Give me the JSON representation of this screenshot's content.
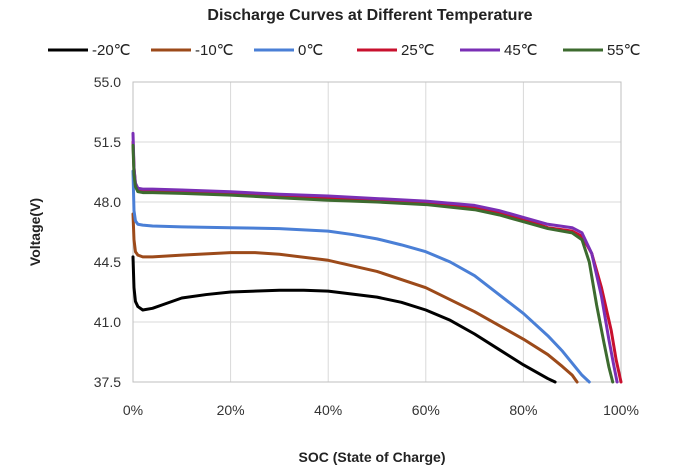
{
  "chart_data": {
    "type": "line",
    "title": "Discharge Curves at Different Temperature",
    "xlabel": "SOC (State of Charge)",
    "ylabel": "Voltage(V)",
    "xlim": [
      0,
      100
    ],
    "ylim": [
      37.5,
      55.0
    ],
    "x_ticks": [
      0,
      20,
      40,
      60,
      80,
      100
    ],
    "x_tick_labels": [
      "0%",
      "20%",
      "40%",
      "60%",
      "80%",
      "100%"
    ],
    "y_ticks": [
      37.5,
      41.0,
      44.5,
      48.0,
      51.5,
      55.0
    ],
    "y_tick_labels": [
      "37.5",
      "41.0",
      "44.5",
      "48.0",
      "51.5",
      "55.0"
    ],
    "grid": true,
    "legend_position": "top",
    "series": [
      {
        "name": "-20℃",
        "color": "#000000",
        "x": [
          0,
          0.2,
          0.5,
          1,
          2,
          4,
          6,
          10,
          15,
          20,
          30,
          35,
          40,
          50,
          55,
          60,
          65,
          70,
          75,
          80,
          85,
          86.5
        ],
        "y": [
          44.8,
          43.0,
          42.2,
          41.9,
          41.7,
          41.8,
          42.0,
          42.4,
          42.6,
          42.75,
          42.85,
          42.85,
          42.8,
          42.45,
          42.15,
          41.7,
          41.1,
          40.3,
          39.4,
          38.5,
          37.7,
          37.5
        ]
      },
      {
        "name": "-10℃",
        "color": "#9c4a1a",
        "x": [
          0,
          0.2,
          0.5,
          1,
          2,
          4,
          10,
          20,
          25,
          30,
          40,
          50,
          60,
          65,
          70,
          75,
          80,
          85,
          88,
          90,
          91
        ],
        "y": [
          47.3,
          45.8,
          45.1,
          44.9,
          44.8,
          44.8,
          44.9,
          45.05,
          45.05,
          44.95,
          44.6,
          43.95,
          43.0,
          42.3,
          41.6,
          40.8,
          40.0,
          39.1,
          38.4,
          37.9,
          37.5
        ]
      },
      {
        "name": "0℃",
        "color": "#4a7fd6",
        "x": [
          0,
          0.2,
          0.5,
          1,
          2,
          4,
          10,
          20,
          30,
          40,
          45,
          50,
          55,
          60,
          65,
          70,
          75,
          80,
          85,
          88,
          90,
          92,
          93.5
        ],
        "y": [
          49.8,
          47.5,
          46.9,
          46.7,
          46.65,
          46.6,
          46.55,
          46.5,
          46.45,
          46.3,
          46.1,
          45.85,
          45.5,
          45.1,
          44.5,
          43.7,
          42.6,
          41.5,
          40.2,
          39.3,
          38.6,
          37.9,
          37.5
        ]
      },
      {
        "name": "25℃",
        "color": "#c8102e",
        "x": [
          0,
          0.2,
          0.5,
          1,
          2,
          4,
          10,
          20,
          30,
          40,
          50,
          60,
          70,
          75,
          80,
          85,
          90,
          92,
          94,
          96,
          98,
          99,
          100
        ],
        "y": [
          51.5,
          50.0,
          49.0,
          48.7,
          48.65,
          48.65,
          48.6,
          48.5,
          48.35,
          48.2,
          48.1,
          47.95,
          47.65,
          47.35,
          47.0,
          46.5,
          46.3,
          46.0,
          45.0,
          43.0,
          40.5,
          38.8,
          37.5
        ]
      },
      {
        "name": "45℃",
        "color": "#7a2fb5",
        "x": [
          0,
          0.2,
          0.5,
          1,
          2,
          4,
          10,
          20,
          30,
          40,
          50,
          60,
          70,
          75,
          80,
          85,
          90,
          92,
          94,
          96,
          97.5,
          98.5,
          99.2
        ],
        "y": [
          52.0,
          50.0,
          49.1,
          48.8,
          48.75,
          48.75,
          48.7,
          48.6,
          48.45,
          48.35,
          48.2,
          48.05,
          47.8,
          47.5,
          47.1,
          46.7,
          46.5,
          46.2,
          45.0,
          42.5,
          40.0,
          38.5,
          37.5
        ]
      },
      {
        "name": "55℃",
        "color": "#3d6b2f",
        "x": [
          0,
          0.2,
          0.5,
          1,
          2,
          4,
          10,
          20,
          30,
          40,
          50,
          60,
          70,
          75,
          80,
          85,
          90,
          92,
          93.5,
          95,
          96.5,
          97.5,
          98.3
        ],
        "y": [
          51.3,
          49.6,
          48.9,
          48.6,
          48.55,
          48.55,
          48.5,
          48.4,
          48.25,
          48.1,
          48.0,
          47.85,
          47.55,
          47.25,
          46.85,
          46.45,
          46.2,
          45.8,
          44.5,
          42.0,
          39.8,
          38.4,
          37.5
        ]
      }
    ]
  }
}
